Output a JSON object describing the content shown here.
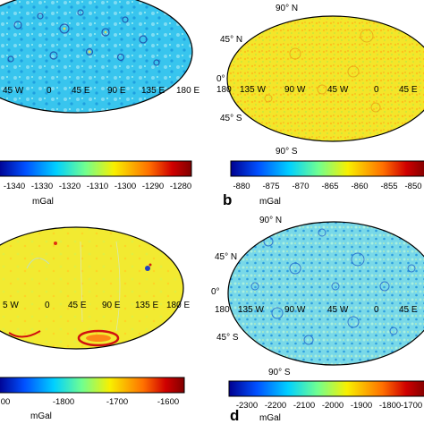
{
  "figure": {
    "panels": [
      {
        "id": "a",
        "letter": "",
        "lon_labels": [
          "45 W",
          "0",
          "45 E",
          "90 E",
          "135 E",
          "180 E"
        ],
        "lat_labels": [],
        "colorbar_ticks": [
          "-1340",
          "-1330",
          "-1320",
          "-1310",
          "-1300",
          "-1290",
          "-1280"
        ],
        "unit": "mGal"
      },
      {
        "id": "b",
        "letter": "b",
        "lon_labels": [
          "180",
          "135 W",
          "90 W",
          "45 W",
          "0",
          "45 E"
        ],
        "lat_labels": [
          "90° N",
          "45° N",
          "0°",
          "45° S",
          "90° S"
        ],
        "colorbar_ticks": [
          "-880",
          "-875",
          "-870",
          "-865",
          "-860",
          "-855",
          "-850"
        ],
        "unit": "mGal"
      },
      {
        "id": "c",
        "letter": "",
        "lon_labels": [
          "5 W",
          "0",
          "45 E",
          "90 E",
          "135 E",
          "180 E"
        ],
        "lat_labels": [],
        "colorbar_ticks": [
          "00",
          "-1800",
          "-1700",
          "-1600"
        ],
        "unit": "mGal"
      },
      {
        "id": "d",
        "letter": "d",
        "lon_labels": [
          "180",
          "135 W",
          "90 W",
          "45 W",
          "0",
          "45 E"
        ],
        "lat_labels": [
          "90° N",
          "45° N",
          "0°",
          "45° S",
          "90° S"
        ],
        "colorbar_ticks": [
          "-2300",
          "-2200",
          "-2100",
          "-2000",
          "-1900",
          "-1800",
          "-1700"
        ],
        "unit": "mGal"
      }
    ],
    "colors": {
      "panel_a_map": "#2fc3ee",
      "panel_b_map": "#f2e82c",
      "panel_c_map": "#f0ea30",
      "panel_d_map": "#6fd6e6"
    },
    "colorbar_gradient": [
      "#00008f",
      "#0050ff",
      "#00d0ff",
      "#70ff90",
      "#f8f000",
      "#ff7000",
      "#d00000",
      "#800000"
    ]
  }
}
